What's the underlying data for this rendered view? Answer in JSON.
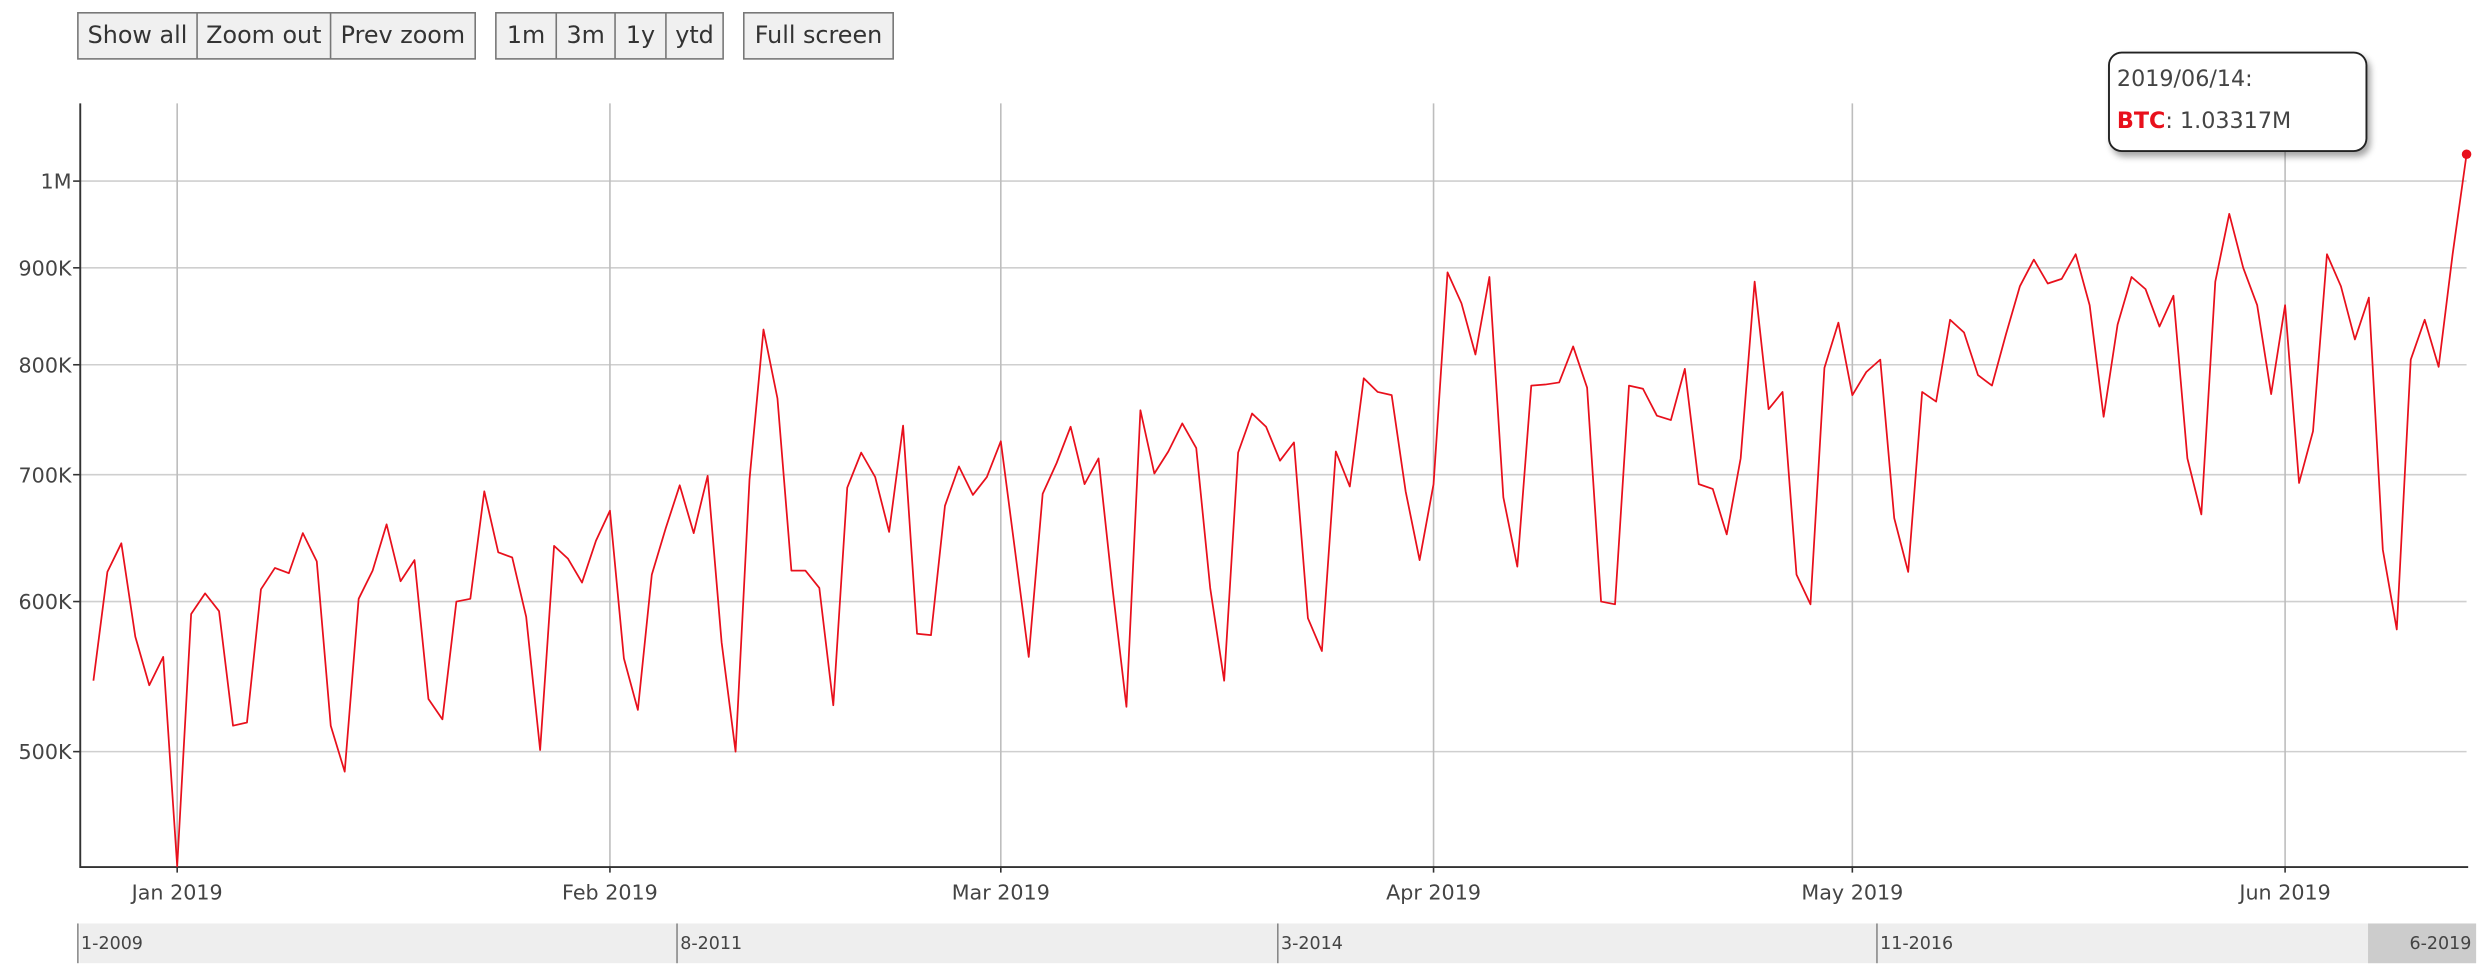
{
  "chart_data": {
    "type": "line",
    "log_scale": true,
    "grid": true,
    "buttons": [
      "Show all",
      "Zoom out",
      "Prev zoom",
      "1m",
      "3m",
      "1y",
      "ytd",
      "Full screen"
    ],
    "series": [
      {
        "name": "BTC",
        "color": "#e8101c",
        "values": [
          545000,
          622000,
          644000,
          575000,
          542000,
          561000,
          435000,
          591000,
          606000,
          593000,
          516000,
          518000,
          609000,
          625000,
          621000,
          652000,
          630000,
          516000,
          488000,
          602000,
          623000,
          659000,
          615000,
          631000,
          533000,
          520000,
          600000,
          602000,
          686000,
          637000,
          633000,
          589000,
          501000,
          642000,
          632000,
          614000,
          646000,
          670000,
          560000,
          526000,
          620000,
          656000,
          691000,
          652000,
          699000,
          571000,
          500000,
          696000,
          835000,
          768000,
          623000,
          623000,
          610000,
          529000,
          689000,
          719000,
          698000,
          653000,
          743000,
          577000,
          576000,
          674000,
          707000,
          683000,
          698000,
          729000,
          640000,
          561000,
          684000,
          710000,
          742000,
          692000,
          714000,
          610000,
          528000,
          757000,
          701000,
          720000,
          745000,
          723000,
          610000,
          545000,
          719000,
          754000,
          742000,
          712000,
          728000,
          588000,
          565000,
          720000,
          690000,
          787000,
          774000,
          771000,
          686000,
          631000,
          692000,
          895000,
          862000,
          810000,
          890000,
          681000,
          626000,
          780000,
          781000,
          783000,
          818000,
          778000,
          600000,
          598000,
          780000,
          777000,
          752000,
          748000,
          796000,
          692000,
          688000,
          651000,
          714000,
          885000,
          758000,
          774000,
          620000,
          598000,
          797000,
          842000,
          771000,
          793000,
          805000,
          664000,
          622000,
          774000,
          765000,
          845000,
          832000,
          790000,
          780000,
          830000,
          880000,
          909000,
          883000,
          888000,
          915000,
          860000,
          751000,
          840000,
          890000,
          877000,
          838000,
          870000,
          714000,
          667000,
          885000,
          961000,
          900000,
          860000,
          772000,
          860000,
          693000,
          738000,
          915000,
          880000,
          825000,
          868000,
          639000,
          580000,
          805000,
          845000,
          798000,
          915000,
          1033170
        ]
      }
    ],
    "x": [
      "2018/12/26",
      "2018/12/27",
      "2018/12/28",
      "2018/12/29",
      "2018/12/30",
      "2018/12/31",
      "2019/01/01",
      "2019/01/02",
      "2019/01/03",
      "2019/01/04",
      "2019/01/05",
      "2019/01/06",
      "2019/01/07",
      "2019/01/08",
      "2019/01/09",
      "2019/01/10",
      "2019/01/11",
      "2019/01/12",
      "2019/01/13",
      "2019/01/14",
      "2019/01/15",
      "2019/01/16",
      "2019/01/17",
      "2019/01/18",
      "2019/01/19",
      "2019/01/20",
      "2019/01/21",
      "2019/01/22",
      "2019/01/23",
      "2019/01/24",
      "2019/01/25",
      "2019/01/26",
      "2019/01/27",
      "2019/01/28",
      "2019/01/29",
      "2019/01/30",
      "2019/01/31",
      "2019/02/01",
      "2019/02/02",
      "2019/02/03",
      "2019/02/04",
      "2019/02/05",
      "2019/02/06",
      "2019/02/07",
      "2019/02/08",
      "2019/02/09",
      "2019/02/10",
      "2019/02/11",
      "2019/02/12",
      "2019/02/13",
      "2019/02/14",
      "2019/02/15",
      "2019/02/16",
      "2019/02/17",
      "2019/02/18",
      "2019/02/19",
      "2019/02/20",
      "2019/02/21",
      "2019/02/22",
      "2019/02/23",
      "2019/02/24",
      "2019/02/25",
      "2019/02/26",
      "2019/02/27",
      "2019/02/28",
      "2019/03/01",
      "2019/03/02",
      "2019/03/03",
      "2019/03/04",
      "2019/03/05",
      "2019/03/06",
      "2019/03/07",
      "2019/03/08",
      "2019/03/09",
      "2019/03/10",
      "2019/03/11",
      "2019/03/12",
      "2019/03/13",
      "2019/03/14",
      "2019/03/15",
      "2019/03/16",
      "2019/03/17",
      "2019/03/18",
      "2019/03/19",
      "2019/03/20",
      "2019/03/21",
      "2019/03/22",
      "2019/03/23",
      "2019/03/24",
      "2019/03/25",
      "2019/03/26",
      "2019/03/27",
      "2019/03/28",
      "2019/03/29",
      "2019/03/30",
      "2019/03/31",
      "2019/04/01",
      "2019/04/02",
      "2019/04/03",
      "2019/04/04",
      "2019/04/05",
      "2019/04/06",
      "2019/04/07",
      "2019/04/08",
      "2019/04/09",
      "2019/04/10",
      "2019/04/11",
      "2019/04/12",
      "2019/04/13",
      "2019/04/14",
      "2019/04/15",
      "2019/04/16",
      "2019/04/17",
      "2019/04/18",
      "2019/04/19",
      "2019/04/20",
      "2019/04/21",
      "2019/04/22",
      "2019/04/23",
      "2019/04/24",
      "2019/04/25",
      "2019/04/26",
      "2019/04/27",
      "2019/04/28",
      "2019/04/29",
      "2019/04/30",
      "2019/05/01",
      "2019/05/02",
      "2019/05/03",
      "2019/05/04",
      "2019/05/05",
      "2019/05/06",
      "2019/05/07",
      "2019/05/08",
      "2019/05/09",
      "2019/05/10",
      "2019/05/11",
      "2019/05/12",
      "2019/05/13",
      "2019/05/14",
      "2019/05/15",
      "2019/05/16",
      "2019/05/17",
      "2019/05/18",
      "2019/05/19",
      "2019/05/20",
      "2019/05/21",
      "2019/05/22",
      "2019/05/23",
      "2019/05/24",
      "2019/05/25",
      "2019/05/26",
      "2019/05/27",
      "2019/05/28",
      "2019/05/29",
      "2019/05/30",
      "2019/05/31",
      "2019/06/01",
      "2019/06/02",
      "2019/06/03",
      "2019/06/04",
      "2019/06/05",
      "2019/06/06",
      "2019/06/07",
      "2019/06/08",
      "2019/06/09",
      "2019/06/10",
      "2019/06/11",
      "2019/06/12",
      "2019/06/13",
      "2019/06/14"
    ],
    "xlim": [
      "2018/12/25",
      "2019/06/14"
    ],
    "xticks": [
      {
        "value": "2019/01/01",
        "label": "Jan 2019"
      },
      {
        "value": "2019/02/01",
        "label": "Feb 2019"
      },
      {
        "value": "2019/03/01",
        "label": "Mar 2019"
      },
      {
        "value": "2019/04/01",
        "label": "Apr 2019"
      },
      {
        "value": "2019/05/01",
        "label": "May 2019"
      },
      {
        "value": "2019/06/01",
        "label": "Jun 2019"
      }
    ],
    "ylim": [
      435000,
      1099000
    ],
    "yticks": [
      {
        "value": 500000,
        "label": "500K"
      },
      {
        "value": 600000,
        "label": "600K"
      },
      {
        "value": 700000,
        "label": "700K"
      },
      {
        "value": 800000,
        "label": "800K"
      },
      {
        "value": 900000,
        "label": "900K"
      },
      {
        "value": 1000000,
        "label": "1M"
      }
    ],
    "tooltip": {
      "title": "2019/06/14:",
      "text": ": 1.03317M"
    },
    "navigator": {
      "labels": [
        "1-2009",
        "8-2011",
        "3-2014",
        "11-2016",
        "6-2019"
      ]
    }
  }
}
